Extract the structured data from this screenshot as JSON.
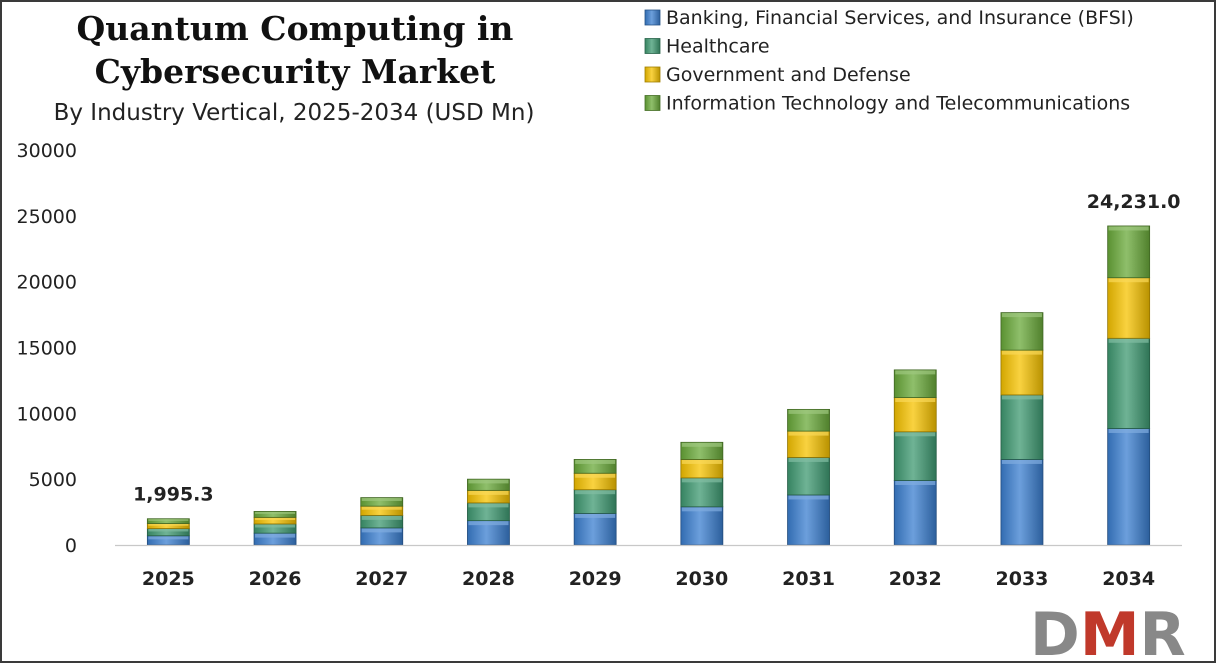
{
  "chart_data": {
    "type": "bar",
    "stacked": true,
    "title_lines": [
      "Quantum Computing in",
      "Cybersecurity Market"
    ],
    "subtitle": "By Industry Vertical, 2025-2034 (USD Mn)",
    "xlabel": "",
    "ylabel": "",
    "ylim": [
      0,
      30000
    ],
    "yticks": [
      "30000",
      "25000",
      "20000",
      "15000",
      "10000",
      "5000",
      "0"
    ],
    "categories": [
      "2025",
      "2026",
      "2027",
      "2028",
      "2029",
      "2030",
      "2031",
      "2032",
      "2033",
      "2034"
    ],
    "series": [
      {
        "name": "Banking, Financial Services, and Insurance (BFSI)",
        "color": "#3b7fd0",
        "values": [
          700,
          900,
          1300,
          1850,
          2400,
          2900,
          3800,
          4900,
          6500,
          8850
        ]
      },
      {
        "name": "Healthcare",
        "color": "#3f9a72",
        "values": [
          550,
          700,
          950,
          1350,
          1800,
          2200,
          2850,
          3700,
          4900,
          6850
        ]
      },
      {
        "name": "Government and Defense",
        "color": "#f7c300",
        "values": [
          380,
          500,
          700,
          950,
          1250,
          1400,
          2000,
          2600,
          3400,
          4600
        ]
      },
      {
        "name": "Information Technology and Telecommunications",
        "color": "#6aaa3a",
        "values": [
          365.3,
          450,
          650,
          850,
          1050,
          1300,
          1650,
          2100,
          2850,
          3931
        ]
      }
    ],
    "annotations": [
      {
        "category": "2025",
        "text": "1,995.3"
      },
      {
        "category": "2034",
        "text": "24,231.0"
      }
    ],
    "legend_position": "top-right",
    "grid": false
  },
  "logo": {
    "text": "DMR",
    "colors": [
      "#888888",
      "#c0392b",
      "#888888"
    ]
  }
}
